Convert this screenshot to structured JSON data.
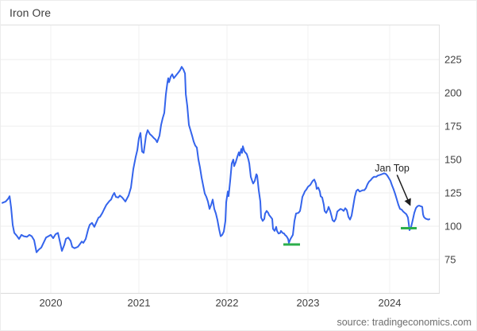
{
  "header": {
    "title": "Iron Ore"
  },
  "footer": {
    "source": "source: tradingeconomics.com"
  },
  "colors": {
    "line": "#3464ec",
    "support": "#2bae4a",
    "grid": "#ededed",
    "grid_vertical": "#f1f1f1",
    "border": "#e0e0e0",
    "axis_bottom": "#d9d9d9",
    "tick_text": "#404040",
    "annotation_text": "#1f1f1f"
  },
  "chart_data": {
    "type": "line",
    "title": "Iron Ore",
    "xlabel": "",
    "ylabel": "",
    "legend": "none",
    "grid": true,
    "y_axis_side": "right",
    "xlim": [
      2019.43,
      2024.6
    ],
    "ylim": [
      50,
      251
    ],
    "x_ticks": [
      {
        "value": 2020,
        "label": "2020"
      },
      {
        "value": 2021,
        "label": "2021"
      },
      {
        "value": 2022,
        "label": "2022"
      },
      {
        "value": 2023,
        "label": "2023"
      },
      {
        "value": 2024,
        "label": "2024"
      }
    ],
    "y_ticks": [
      75,
      100,
      125,
      150,
      175,
      200,
      225
    ],
    "series": [
      {
        "name": "Iron Ore",
        "points": [
          [
            2019.45,
            117.5
          ],
          [
            2019.487,
            118.5
          ],
          [
            2019.514,
            120.5
          ],
          [
            2019.532,
            122.5
          ],
          [
            2019.55,
            114
          ],
          [
            2019.568,
            101
          ],
          [
            2019.586,
            95
          ],
          [
            2019.613,
            93
          ],
          [
            2019.64,
            90.5
          ],
          [
            2019.667,
            93.5
          ],
          [
            2019.694,
            92.5
          ],
          [
            2019.73,
            92
          ],
          [
            2019.757,
            93.5
          ],
          [
            2019.784,
            92.5
          ],
          [
            2019.811,
            89.5
          ],
          [
            2019.838,
            80.5
          ],
          [
            2019.865,
            82.5
          ],
          [
            2019.892,
            84
          ],
          [
            2019.91,
            86.5
          ],
          [
            2019.946,
            91.5
          ],
          [
            2019.973,
            92.5
          ],
          [
            2020,
            93.5
          ],
          [
            2020.027,
            91
          ],
          [
            2020.054,
            94
          ],
          [
            2020.081,
            95
          ],
          [
            2020.108,
            87
          ],
          [
            2020.126,
            81.5
          ],
          [
            2020.153,
            86
          ],
          [
            2020.171,
            90.5
          ],
          [
            2020.198,
            91.5
          ],
          [
            2020.225,
            89
          ],
          [
            2020.243,
            84.5
          ],
          [
            2020.27,
            83.5
          ],
          [
            2020.306,
            84.5
          ],
          [
            2020.324,
            86
          ],
          [
            2020.351,
            88.5
          ],
          [
            2020.369,
            87.5
          ],
          [
            2020.396,
            90.5
          ],
          [
            2020.423,
            97.5
          ],
          [
            2020.441,
            101
          ],
          [
            2020.468,
            102.5
          ],
          [
            2020.495,
            99.5
          ],
          [
            2020.514,
            102.5
          ],
          [
            2020.541,
            106.5
          ],
          [
            2020.559,
            107
          ],
          [
            2020.586,
            110
          ],
          [
            2020.604,
            112.5
          ],
          [
            2020.631,
            116
          ],
          [
            2020.667,
            119
          ],
          [
            2020.685,
            120
          ],
          [
            2020.703,
            123
          ],
          [
            2020.721,
            125
          ],
          [
            2020.739,
            122
          ],
          [
            2020.766,
            121.5
          ],
          [
            2020.784,
            123
          ],
          [
            2020.811,
            121.5
          ],
          [
            2020.829,
            120
          ],
          [
            2020.847,
            118.5
          ],
          [
            2020.883,
            123
          ],
          [
            2020.91,
            129
          ],
          [
            2020.937,
            143
          ],
          [
            2020.964,
            152
          ],
          [
            2020.982,
            157
          ],
          [
            2021,
            166
          ],
          [
            2021.018,
            170
          ],
          [
            2021.036,
            156
          ],
          [
            2021.054,
            155
          ],
          [
            2021.081,
            168
          ],
          [
            2021.099,
            172
          ],
          [
            2021.126,
            169
          ],
          [
            2021.144,
            168
          ],
          [
            2021.171,
            166
          ],
          [
            2021.189,
            165
          ],
          [
            2021.207,
            163
          ],
          [
            2021.234,
            168
          ],
          [
            2021.252,
            176
          ],
          [
            2021.27,
            181
          ],
          [
            2021.288,
            185
          ],
          [
            2021.306,
            199
          ],
          [
            2021.324,
            208
          ],
          [
            2021.333,
            211
          ],
          [
            2021.342,
            208
          ],
          [
            2021.36,
            212
          ],
          [
            2021.378,
            214
          ],
          [
            2021.396,
            211
          ],
          [
            2021.414,
            212.5
          ],
          [
            2021.432,
            214
          ],
          [
            2021.45,
            215.5
          ],
          [
            2021.468,
            217
          ],
          [
            2021.486,
            219.5
          ],
          [
            2021.505,
            217.5
          ],
          [
            2021.523,
            214.5
          ],
          [
            2021.532,
            199
          ],
          [
            2021.55,
            190
          ],
          [
            2021.568,
            176
          ],
          [
            2021.586,
            172
          ],
          [
            2021.604,
            168
          ],
          [
            2021.622,
            163.5
          ],
          [
            2021.64,
            160.5
          ],
          [
            2021.658,
            159
          ],
          [
            2021.676,
            150
          ],
          [
            2021.694,
            144
          ],
          [
            2021.712,
            136.5
          ],
          [
            2021.73,
            130.5
          ],
          [
            2021.748,
            124.5
          ],
          [
            2021.766,
            122
          ],
          [
            2021.784,
            118.5
          ],
          [
            2021.802,
            113
          ],
          [
            2021.82,
            116
          ],
          [
            2021.838,
            120
          ],
          [
            2021.856,
            113
          ],
          [
            2021.874,
            109.5
          ],
          [
            2021.892,
            104.5
          ],
          [
            2021.91,
            98
          ],
          [
            2021.928,
            92.5
          ],
          [
            2021.946,
            93.5
          ],
          [
            2021.964,
            96
          ],
          [
            2021.982,
            104
          ],
          [
            2021.991,
            118
          ],
          [
            2022.01,
            126
          ],
          [
            2022.02,
            122.5
          ],
          [
            2022.039,
            134
          ],
          [
            2022.059,
            147
          ],
          [
            2022.078,
            150
          ],
          [
            2022.088,
            145
          ],
          [
            2022.108,
            148
          ],
          [
            2022.127,
            152
          ],
          [
            2022.147,
            155.5
          ],
          [
            2022.157,
            153
          ],
          [
            2022.176,
            158
          ],
          [
            2022.186,
            155
          ],
          [
            2022.196,
            160
          ],
          [
            2022.216,
            156
          ],
          [
            2022.225,
            155.5
          ],
          [
            2022.245,
            154
          ],
          [
            2022.265,
            150
          ],
          [
            2022.275,
            147
          ],
          [
            2022.294,
            137
          ],
          [
            2022.314,
            133.5
          ],
          [
            2022.324,
            132
          ],
          [
            2022.343,
            134
          ],
          [
            2022.363,
            139
          ],
          [
            2022.373,
            138
          ],
          [
            2022.392,
            127
          ],
          [
            2022.412,
            118.5
          ],
          [
            2022.422,
            106.5
          ],
          [
            2022.441,
            104
          ],
          [
            2022.461,
            105.5
          ],
          [
            2022.471,
            109.5
          ],
          [
            2022.49,
            111.5
          ],
          [
            2022.51,
            110
          ],
          [
            2022.52,
            108.5
          ],
          [
            2022.539,
            107
          ],
          [
            2022.559,
            105.5
          ],
          [
            2022.569,
            98
          ],
          [
            2022.588,
            96.5
          ],
          [
            2022.608,
            99.5
          ],
          [
            2022.618,
            96.5
          ],
          [
            2022.637,
            94.5
          ],
          [
            2022.657,
            95
          ],
          [
            2022.667,
            96.5
          ],
          [
            2022.686,
            95
          ],
          [
            2022.706,
            94.5
          ],
          [
            2022.716,
            93.5
          ],
          [
            2022.735,
            92.5
          ],
          [
            2022.755,
            90.5
          ],
          [
            2022.765,
            87.5
          ],
          [
            2022.784,
            90.5
          ],
          [
            2022.804,
            92.5
          ],
          [
            2022.814,
            93.5
          ],
          [
            2022.833,
            104
          ],
          [
            2022.853,
            109.5
          ],
          [
            2022.882,
            110
          ],
          [
            2022.902,
            111.5
          ],
          [
            2022.912,
            114.5
          ],
          [
            2022.931,
            122
          ],
          [
            2022.951,
            124.5
          ],
          [
            2022.961,
            126
          ],
          [
            2022.98,
            127.5
          ],
          [
            2023,
            129.5
          ],
          [
            2023.029,
            131
          ],
          [
            2023.058,
            134
          ],
          [
            2023.078,
            135
          ],
          [
            2023.097,
            132
          ],
          [
            2023.107,
            128
          ],
          [
            2023.126,
            129
          ],
          [
            2023.146,
            126
          ],
          [
            2023.155,
            122.5
          ],
          [
            2023.175,
            121.5
          ],
          [
            2023.194,
            116
          ],
          [
            2023.204,
            111.5
          ],
          [
            2023.223,
            110
          ],
          [
            2023.243,
            112.5
          ],
          [
            2023.252,
            114.5
          ],
          [
            2023.272,
            111.5
          ],
          [
            2023.291,
            107
          ],
          [
            2023.301,
            104.5
          ],
          [
            2023.32,
            103.5
          ],
          [
            2023.34,
            105.5
          ],
          [
            2023.359,
            111
          ],
          [
            2023.379,
            112
          ],
          [
            2023.398,
            113
          ],
          [
            2023.417,
            112.5
          ],
          [
            2023.437,
            111.5
          ],
          [
            2023.456,
            113.5
          ],
          [
            2023.476,
            112
          ],
          [
            2023.495,
            107
          ],
          [
            2023.515,
            105
          ],
          [
            2023.534,
            108
          ],
          [
            2023.553,
            115
          ],
          [
            2023.573,
            122
          ],
          [
            2023.592,
            126.5
          ],
          [
            2023.612,
            127.5
          ],
          [
            2023.631,
            126
          ],
          [
            2023.65,
            126.5
          ],
          [
            2023.67,
            127
          ],
          [
            2023.689,
            127
          ],
          [
            2023.709,
            128.5
          ],
          [
            2023.728,
            131.5
          ],
          [
            2023.748,
            133.5
          ],
          [
            2023.767,
            134.5
          ],
          [
            2023.786,
            136
          ],
          [
            2023.806,
            137
          ],
          [
            2023.835,
            137
          ],
          [
            2023.854,
            138
          ],
          [
            2023.883,
            138.5
          ],
          [
            2023.903,
            139
          ],
          [
            2023.932,
            139.7
          ],
          [
            2023.951,
            139.2
          ],
          [
            2023.971,
            138
          ],
          [
            2023.99,
            136
          ],
          [
            2024.01,
            134
          ],
          [
            2024.029,
            130.5
          ],
          [
            2024.049,
            127.5
          ],
          [
            2024.068,
            124
          ],
          [
            2024.087,
            120
          ],
          [
            2024.107,
            116
          ],
          [
            2024.126,
            113
          ],
          [
            2024.146,
            112.5
          ],
          [
            2024.165,
            111
          ],
          [
            2024.184,
            110
          ],
          [
            2024.204,
            109
          ],
          [
            2024.223,
            106.5
          ],
          [
            2024.233,
            102
          ],
          [
            2024.243,
            97
          ],
          [
            2024.262,
            99.5
          ],
          [
            2024.282,
            104.5
          ],
          [
            2024.301,
            110
          ],
          [
            2024.32,
            113.5
          ],
          [
            2024.34,
            115
          ],
          [
            2024.359,
            115.5
          ],
          [
            2024.379,
            115
          ],
          [
            2024.398,
            114.5
          ],
          [
            2024.408,
            109
          ],
          [
            2024.417,
            107
          ],
          [
            2024.437,
            105.8
          ],
          [
            2024.456,
            105.3
          ],
          [
            2024.476,
            105
          ],
          [
            2024.485,
            105.3
          ]
        ]
      }
    ],
    "support_lines": [
      {
        "t1": 2022.696,
        "t2": 2022.902,
        "value": 86.3
      },
      {
        "t1": 2024.136,
        "t2": 2024.33,
        "value": 98.5
      }
    ],
    "annotations": [
      {
        "text": "Jan Top",
        "label_at": [
          2024.03,
          143.5
        ],
        "arrow_from": [
          2024.09,
          138.5
        ],
        "arrow_to": [
          2024.25,
          115.8
        ]
      }
    ]
  }
}
